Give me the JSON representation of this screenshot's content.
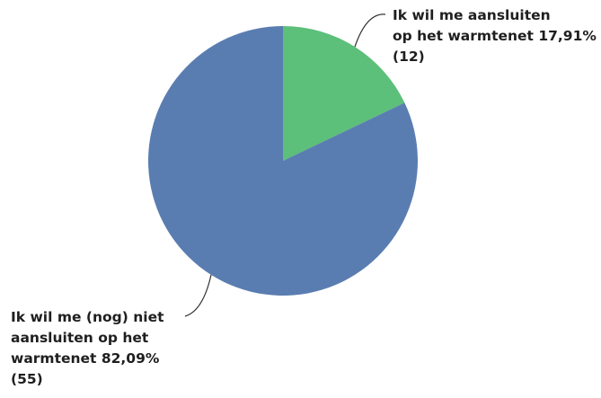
{
  "chart_data": {
    "type": "pie",
    "slices": [
      {
        "name": "Ik wil me aansluiten op het warmtenet",
        "percent": 17.91,
        "count": 12,
        "color": "#5cbf7a",
        "label_lines": [
          "Ik wil me aansluiten",
          "op het warmtenet 17,91%",
          "(12)"
        ]
      },
      {
        "name": "Ik wil me (nog) niet aansluiten op het warmtenet",
        "percent": 82.09,
        "count": 55,
        "color": "#5a7db1",
        "label_lines": [
          "Ik wil me (nog) niet",
          "aansluiten op het",
          "warmtenet 82,09%",
          "(55)"
        ]
      }
    ],
    "start_angle": "12 o'clock",
    "direction": "clockwise",
    "legend": "none"
  }
}
